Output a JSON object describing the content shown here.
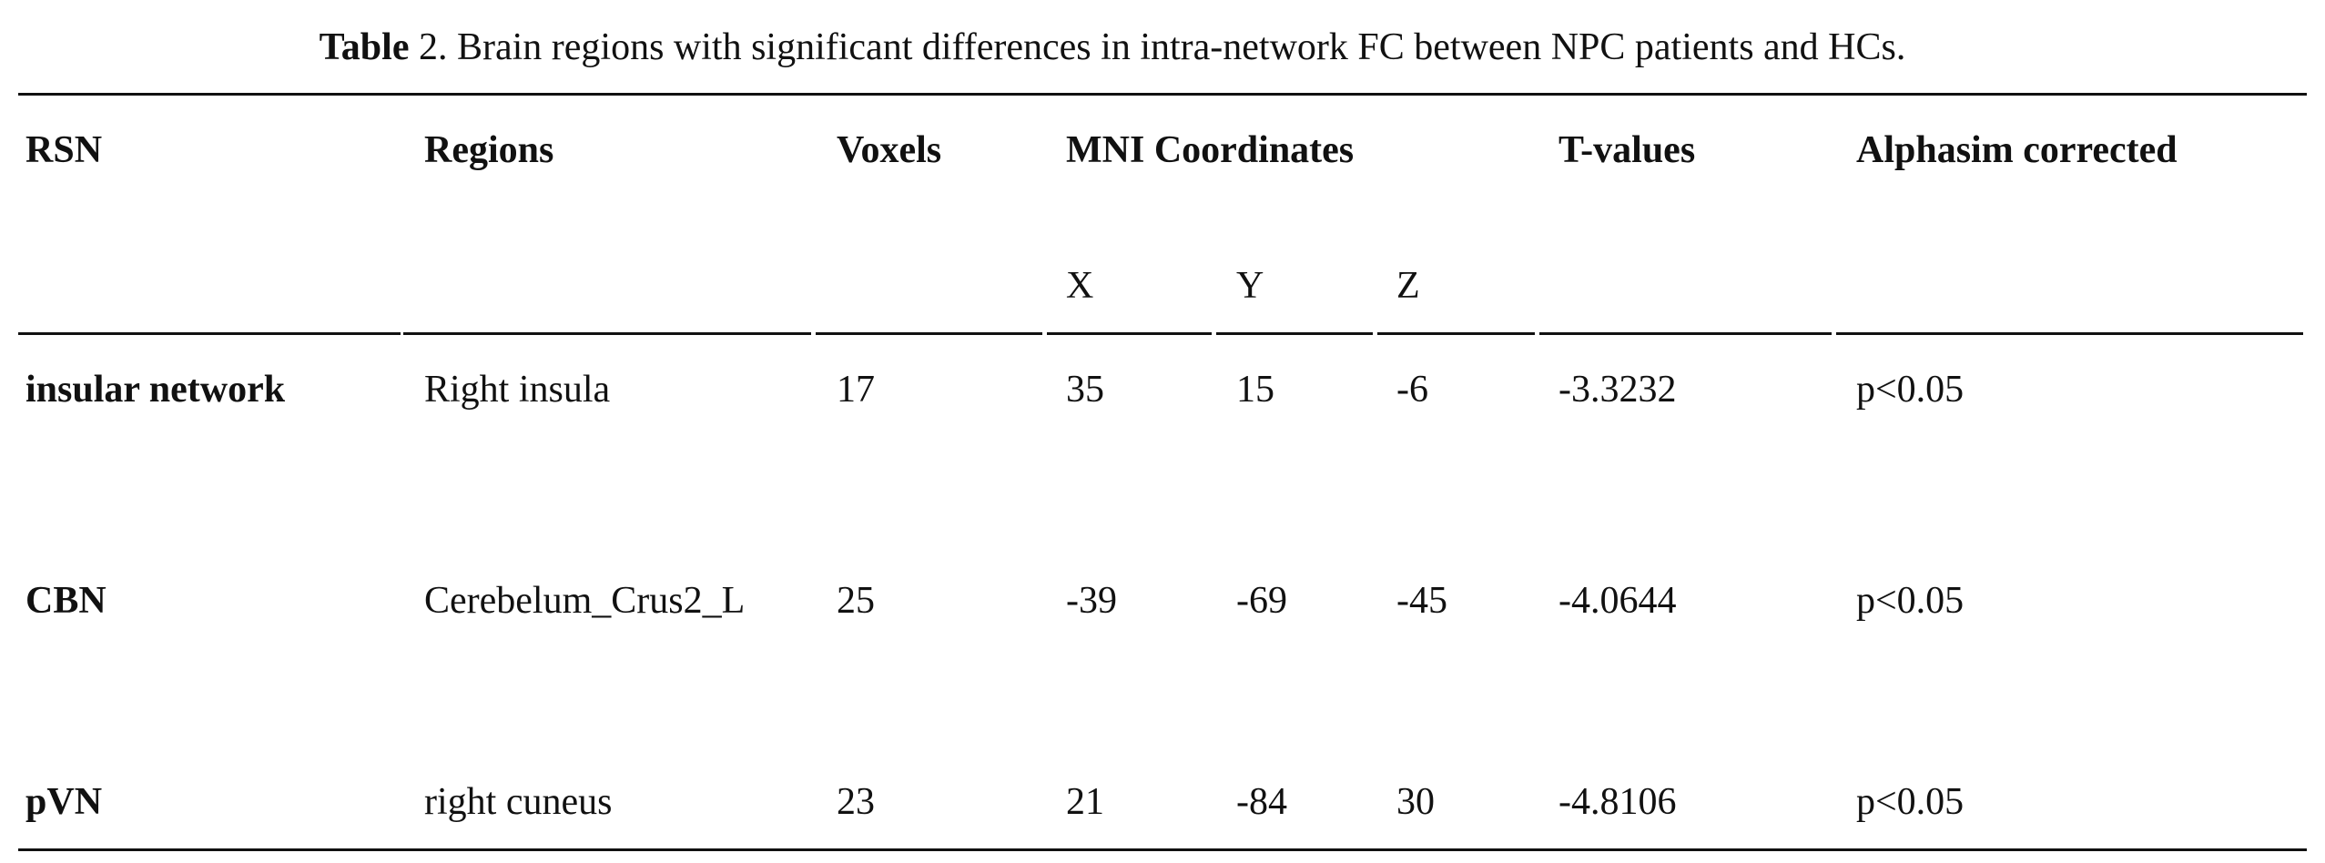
{
  "caption": {
    "label": "Table",
    "text": "2. Brain regions with significant differences in intra-network FC between NPC patients and HCs."
  },
  "table": {
    "headers": [
      "RSN",
      "Regions",
      "Voxels",
      "MNI Coordinates",
      "T-values",
      "Alphasim corrected"
    ],
    "subheaders": [
      "X",
      "Y",
      "Z"
    ],
    "rows": [
      [
        "insular network",
        "Right insula",
        "17",
        "35",
        "15",
        "-6",
        "-3.3232",
        "p<0.05"
      ],
      [
        "CBN",
        "Cerebelum_Crus2_L",
        "25",
        "-39",
        "-69",
        "-45",
        "-4.0644",
        "p<0.05"
      ],
      [
        "pVN",
        "right cuneus",
        "23",
        "21",
        "-84",
        "30",
        "-4.8106",
        "p<0.05"
      ]
    ]
  }
}
